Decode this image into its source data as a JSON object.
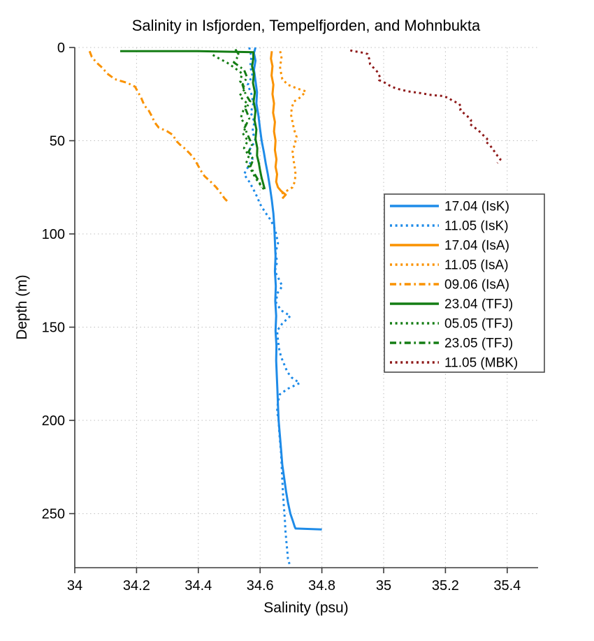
{
  "chart_data": {
    "type": "line",
    "title": "Salinity in Isfjorden, Tempelfjorden, and Mohnbukta",
    "xlabel": "Salinity (psu)",
    "ylabel": "Depth (m)",
    "x_range": [
      34,
      35.5
    ],
    "y_range": [
      0,
      279
    ],
    "y_inverted": true,
    "grid": true,
    "grid_color": "#bfbfbf",
    "axis_color": "#3a3a3a",
    "legend_position": "right-middle",
    "x_ticks": [
      {
        "value": 34,
        "label": "34"
      },
      {
        "value": 34.2,
        "label": "34.2"
      },
      {
        "value": 34.4,
        "label": "34.4"
      },
      {
        "value": 34.6,
        "label": "34.6"
      },
      {
        "value": 34.8,
        "label": "34.8"
      },
      {
        "value": 35,
        "label": "35"
      },
      {
        "value": 35.2,
        "label": "35.2"
      },
      {
        "value": 35.4,
        "label": "35.4"
      }
    ],
    "y_ticks": [
      {
        "value": 0,
        "label": "0"
      },
      {
        "value": 50,
        "label": "50"
      },
      {
        "value": 100,
        "label": "100"
      },
      {
        "value": 150,
        "label": "150"
      },
      {
        "value": 200,
        "label": "200"
      },
      {
        "value": 250,
        "label": "250"
      }
    ],
    "series": [
      {
        "name": "17.04 (IsK)",
        "color": "#1e8be8",
        "style": "solid",
        "points": [
          [
            34.585,
            0
          ],
          [
            34.58,
            3
          ],
          [
            34.585,
            7
          ],
          [
            34.58,
            12
          ],
          [
            34.585,
            18
          ],
          [
            34.59,
            24
          ],
          [
            34.588,
            30
          ],
          [
            34.595,
            37
          ],
          [
            34.6,
            44
          ],
          [
            34.605,
            50
          ],
          [
            34.612,
            56
          ],
          [
            34.618,
            62
          ],
          [
            34.625,
            68
          ],
          [
            34.632,
            75
          ],
          [
            34.638,
            82
          ],
          [
            34.643,
            89
          ],
          [
            34.646,
            96
          ],
          [
            34.648,
            104
          ],
          [
            34.65,
            112
          ],
          [
            34.648,
            120
          ],
          [
            34.651,
            128
          ],
          [
            34.649,
            136
          ],
          [
            34.652,
            144
          ],
          [
            34.65,
            152
          ],
          [
            34.653,
            160
          ],
          [
            34.652,
            168
          ],
          [
            34.654,
            176
          ],
          [
            34.656,
            184
          ],
          [
            34.658,
            192
          ],
          [
            34.66,
            200
          ],
          [
            34.664,
            208
          ],
          [
            34.668,
            216
          ],
          [
            34.672,
            224
          ],
          [
            34.678,
            231
          ],
          [
            34.684,
            238
          ],
          [
            34.69,
            244
          ],
          [
            34.698,
            250
          ],
          [
            34.706,
            254
          ],
          [
            34.712,
            257
          ],
          [
            34.715,
            258
          ],
          [
            34.8,
            258.5
          ]
        ]
      },
      {
        "name": "11.05 (IsK)",
        "color": "#1e8be8",
        "style": "dotted",
        "points": [
          [
            34.565,
            0
          ],
          [
            34.572,
            5
          ],
          [
            34.568,
            10
          ],
          [
            34.575,
            15
          ],
          [
            34.56,
            20
          ],
          [
            34.572,
            25
          ],
          [
            34.578,
            30
          ],
          [
            34.57,
            35
          ],
          [
            34.582,
            40
          ],
          [
            34.575,
            45
          ],
          [
            34.585,
            50
          ],
          [
            34.565,
            55
          ],
          [
            34.575,
            60
          ],
          [
            34.558,
            65
          ],
          [
            34.548,
            68
          ],
          [
            34.565,
            72
          ],
          [
            34.578,
            76
          ],
          [
            34.59,
            80
          ],
          [
            34.6,
            84
          ],
          [
            34.615,
            88
          ],
          [
            34.632,
            92
          ],
          [
            34.645,
            96
          ],
          [
            34.652,
            100
          ],
          [
            34.658,
            105
          ],
          [
            34.65,
            110
          ],
          [
            34.655,
            115
          ],
          [
            34.648,
            120
          ],
          [
            34.66,
            124
          ],
          [
            34.672,
            128
          ],
          [
            34.655,
            132
          ],
          [
            34.652,
            137
          ],
          [
            34.668,
            141
          ],
          [
            34.698,
            144
          ],
          [
            34.672,
            148
          ],
          [
            34.655,
            152
          ],
          [
            34.658,
            157
          ],
          [
            34.662,
            162
          ],
          [
            34.668,
            166
          ],
          [
            34.678,
            170
          ],
          [
            34.688,
            174
          ],
          [
            34.702,
            177
          ],
          [
            34.728,
            180
          ],
          [
            34.69,
            183
          ],
          [
            34.664,
            186
          ],
          [
            34.658,
            190
          ],
          [
            34.655,
            195
          ],
          [
            34.66,
            200
          ],
          [
            34.662,
            206
          ],
          [
            34.665,
            212
          ],
          [
            34.668,
            218
          ],
          [
            34.67,
            225
          ],
          [
            34.672,
            232
          ],
          [
            34.674,
            239
          ],
          [
            34.677,
            246
          ],
          [
            34.68,
            253
          ],
          [
            34.682,
            259
          ],
          [
            34.685,
            265
          ],
          [
            34.688,
            270
          ],
          [
            34.69,
            274
          ],
          [
            34.695,
            277
          ]
        ]
      },
      {
        "name": "17.04 (IsA)",
        "color": "#fa9200",
        "style": "solid",
        "points": [
          [
            34.638,
            2
          ],
          [
            34.635,
            6
          ],
          [
            34.64,
            10
          ],
          [
            34.637,
            15
          ],
          [
            34.643,
            20
          ],
          [
            34.64,
            25
          ],
          [
            34.645,
            30
          ],
          [
            34.642,
            35
          ],
          [
            34.648,
            40
          ],
          [
            34.645,
            45
          ],
          [
            34.65,
            50
          ],
          [
            34.648,
            55
          ],
          [
            34.653,
            60
          ],
          [
            34.65,
            64
          ],
          [
            34.655,
            68
          ],
          [
            34.652,
            72
          ],
          [
            34.658,
            75
          ],
          [
            34.668,
            77
          ],
          [
            34.683,
            79
          ],
          [
            34.672,
            81
          ]
        ]
      },
      {
        "name": "11.05 (IsA)",
        "color": "#fa9200",
        "style": "dotted",
        "points": [
          [
            34.665,
            2
          ],
          [
            34.67,
            6
          ],
          [
            34.664,
            10
          ],
          [
            34.668,
            14
          ],
          [
            34.672,
            17
          ],
          [
            34.69,
            20
          ],
          [
            34.72,
            22
          ],
          [
            34.748,
            23.5
          ],
          [
            34.74,
            25
          ],
          [
            34.728,
            27
          ],
          [
            34.71,
            29
          ],
          [
            34.703,
            32
          ],
          [
            34.7,
            36
          ],
          [
            34.705,
            40
          ],
          [
            34.71,
            44
          ],
          [
            34.718,
            48
          ],
          [
            34.712,
            52
          ],
          [
            34.705,
            56
          ],
          [
            34.708,
            60
          ],
          [
            34.712,
            64
          ],
          [
            34.715,
            68
          ],
          [
            34.712,
            72
          ],
          [
            34.705,
            75
          ],
          [
            34.685,
            77
          ],
          [
            34.662,
            79
          ]
        ]
      },
      {
        "name": "09.06 (IsA)",
        "color": "#fa9200",
        "style": "dashdot",
        "points": [
          [
            34.048,
            2
          ],
          [
            34.055,
            5
          ],
          [
            34.07,
            8
          ],
          [
            34.09,
            11
          ],
          [
            34.105,
            14
          ],
          [
            34.13,
            17
          ],
          [
            34.17,
            19
          ],
          [
            34.195,
            21
          ],
          [
            34.205,
            24
          ],
          [
            34.215,
            27
          ],
          [
            34.225,
            31
          ],
          [
            34.24,
            34
          ],
          [
            34.25,
            37
          ],
          [
            34.258,
            40
          ],
          [
            34.272,
            43
          ],
          [
            34.3,
            45
          ],
          [
            34.318,
            47
          ],
          [
            34.328,
            50
          ],
          [
            34.34,
            52
          ],
          [
            34.355,
            54
          ],
          [
            34.373,
            57
          ],
          [
            34.388,
            60
          ],
          [
            34.398,
            63
          ],
          [
            34.408,
            66
          ],
          [
            34.42,
            69
          ],
          [
            34.44,
            72
          ],
          [
            34.458,
            75
          ],
          [
            34.472,
            78
          ],
          [
            34.485,
            81
          ],
          [
            34.497,
            83
          ]
        ]
      },
      {
        "name": "23.04 (TFJ)",
        "color": "#147d14",
        "style": "solid",
        "points": [
          [
            34.147,
            2
          ],
          [
            34.4,
            2
          ],
          [
            34.578,
            2.5
          ],
          [
            34.578,
            6
          ],
          [
            34.574,
            10
          ],
          [
            34.58,
            14
          ],
          [
            34.577,
            19
          ],
          [
            34.583,
            24
          ],
          [
            34.579,
            29
          ],
          [
            34.585,
            34
          ],
          [
            34.582,
            39
          ],
          [
            34.588,
            44
          ],
          [
            34.585,
            49
          ],
          [
            34.591,
            54
          ],
          [
            34.59,
            58
          ],
          [
            34.596,
            62
          ],
          [
            34.6,
            66
          ],
          [
            34.605,
            70
          ],
          [
            34.61,
            73
          ],
          [
            34.615,
            76
          ]
        ]
      },
      {
        "name": "05.05 (TFJ)",
        "color": "#147d14",
        "style": "dotted",
        "points": [
          [
            34.447,
            4
          ],
          [
            34.468,
            6
          ],
          [
            34.492,
            8
          ],
          [
            34.518,
            11
          ],
          [
            34.542,
            14
          ],
          [
            34.535,
            18
          ],
          [
            34.552,
            22
          ],
          [
            34.533,
            26
          ],
          [
            34.558,
            30
          ],
          [
            34.545,
            34
          ],
          [
            34.537,
            38
          ],
          [
            34.556,
            42
          ],
          [
            34.544,
            46
          ],
          [
            34.56,
            50
          ],
          [
            34.548,
            54
          ],
          [
            34.564,
            58
          ],
          [
            34.555,
            62
          ],
          [
            34.572,
            66
          ],
          [
            34.585,
            70
          ],
          [
            34.598,
            73
          ],
          [
            34.612,
            76
          ]
        ]
      },
      {
        "name": "23.05 (TFJ)",
        "color": "#147d14",
        "style": "dashdot",
        "points": [
          [
            34.52,
            1
          ],
          [
            34.532,
            4
          ],
          [
            34.515,
            8
          ],
          [
            34.548,
            12
          ],
          [
            34.558,
            16
          ],
          [
            34.543,
            20
          ],
          [
            34.553,
            25
          ],
          [
            34.568,
            29
          ],
          [
            34.553,
            33
          ],
          [
            34.565,
            38
          ],
          [
            34.55,
            43
          ],
          [
            34.56,
            47
          ],
          [
            34.574,
            52
          ],
          [
            34.563,
            56
          ],
          [
            34.578,
            60
          ],
          [
            34.568,
            64
          ],
          [
            34.583,
            68
          ],
          [
            34.597,
            72
          ],
          [
            34.605,
            75
          ]
        ]
      },
      {
        "name": "11.05 (MBK)",
        "color": "#8e1919",
        "style": "dotted",
        "points": [
          [
            34.892,
            1.5
          ],
          [
            34.9,
            2
          ],
          [
            34.925,
            2.5
          ],
          [
            34.948,
            3.5
          ],
          [
            34.953,
            6
          ],
          [
            34.956,
            9
          ],
          [
            34.968,
            11
          ],
          [
            34.982,
            13.5
          ],
          [
            34.988,
            16
          ],
          [
            34.985,
            17.5
          ],
          [
            35.005,
            19
          ],
          [
            35.02,
            20.5
          ],
          [
            35.04,
            22
          ],
          [
            35.078,
            23.5
          ],
          [
            35.12,
            24.5
          ],
          [
            35.155,
            25.5
          ],
          [
            35.19,
            26
          ],
          [
            35.21,
            27
          ],
          [
            35.222,
            28.5
          ],
          [
            35.243,
            30
          ],
          [
            35.252,
            32
          ],
          [
            35.248,
            33.5
          ],
          [
            35.258,
            35
          ],
          [
            35.272,
            37
          ],
          [
            35.283,
            39
          ],
          [
            35.279,
            41
          ],
          [
            35.295,
            43
          ],
          [
            35.31,
            45
          ],
          [
            35.322,
            47
          ],
          [
            35.335,
            49
          ],
          [
            35.33,
            50.5
          ],
          [
            35.345,
            52.5
          ],
          [
            35.352,
            54.5
          ],
          [
            35.36,
            56
          ],
          [
            35.368,
            58
          ],
          [
            35.378,
            60
          ],
          [
            35.368,
            62
          ]
        ]
      }
    ],
    "legend": [
      {
        "label": "17.04 (IsK)",
        "color": "#1e8be8",
        "style": "solid"
      },
      {
        "label": "11.05 (IsK)",
        "color": "#1e8be8",
        "style": "dotted"
      },
      {
        "label": "17.04 (IsA)",
        "color": "#fa9200",
        "style": "solid"
      },
      {
        "label": "11.05 (IsA)",
        "color": "#fa9200",
        "style": "dotted"
      },
      {
        "label": "09.06 (IsA)",
        "color": "#fa9200",
        "style": "dashdot"
      },
      {
        "label": "23.04 (TFJ)",
        "color": "#147d14",
        "style": "solid"
      },
      {
        "label": "05.05 (TFJ)",
        "color": "#147d14",
        "style": "dotted"
      },
      {
        "label": "23.05 (TFJ)",
        "color": "#147d14",
        "style": "dashdot"
      },
      {
        "label": "11.05 (MBK)",
        "color": "#8e1919",
        "style": "dotted"
      }
    ]
  }
}
